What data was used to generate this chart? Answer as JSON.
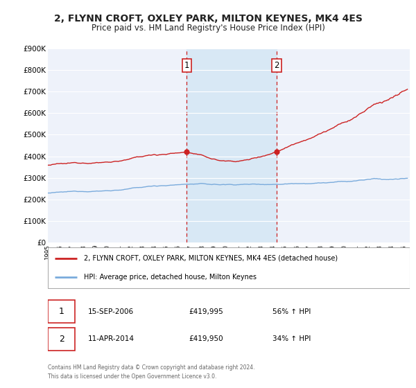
{
  "title": "2, FLYNN CROFT, OXLEY PARK, MILTON KEYNES, MK4 4ES",
  "subtitle": "Price paid vs. HM Land Registry's House Price Index (HPI)",
  "background_color": "#ffffff",
  "plot_bg_color": "#eef2fa",
  "grid_color": "#ffffff",
  "sale1_label_date": "15-SEP-2006",
  "sale1_price": 419995,
  "sale1_price_str": "£419,995",
  "sale1_pct": "56% ↑ HPI",
  "sale2_label_date": "11-APR-2014",
  "sale2_price": 419950,
  "sale2_price_str": "£419,950",
  "sale2_pct": "34% ↑ HPI",
  "sale1_yr": 2006.708,
  "sale2_yr": 2014.278,
  "hpi_line_color": "#7aabdc",
  "price_line_color": "#cc2222",
  "sale_marker_color": "#cc2222",
  "vline_color": "#cc2222",
  "shade_color": "#d8e8f5",
  "legend_label_price": "2, FLYNN CROFT, OXLEY PARK, MILTON KEYNES, MK4 4ES (detached house)",
  "legend_label_hpi": "HPI: Average price, detached house, Milton Keynes",
  "footer1": "Contains HM Land Registry data © Crown copyright and database right 2024.",
  "footer2": "This data is licensed under the Open Government Licence v3.0.",
  "ylim_max": 900000,
  "yticks": [
    0,
    100000,
    200000,
    300000,
    400000,
    500000,
    600000,
    700000,
    800000,
    900000
  ],
  "ytick_labels": [
    "£0",
    "£100K",
    "£200K",
    "£300K",
    "£400K",
    "£500K",
    "£600K",
    "£700K",
    "£800K",
    "£900K"
  ],
  "xmin": 1995,
  "xmax": 2025.5
}
